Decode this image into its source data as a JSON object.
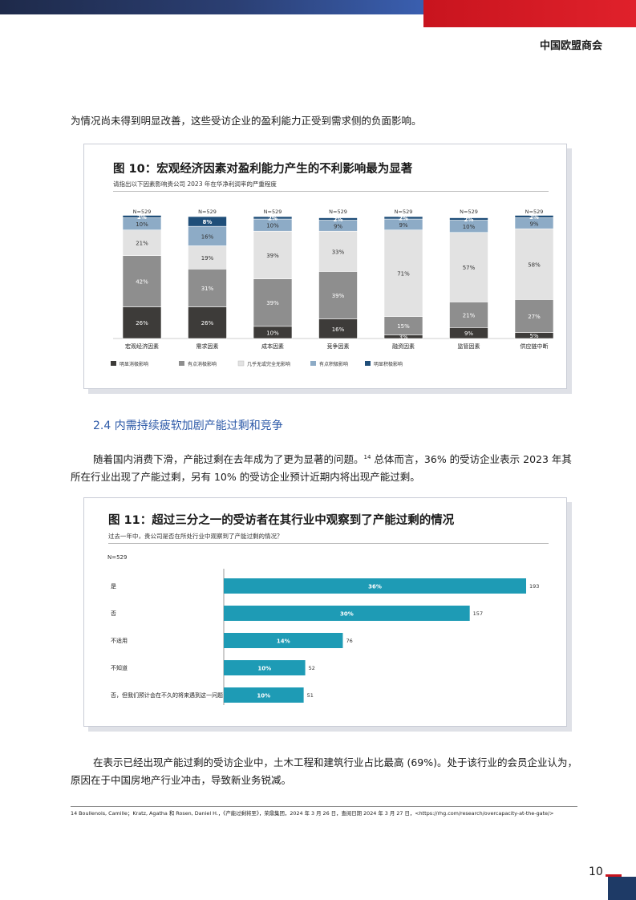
{
  "header": {
    "org": "中国欧盟商会"
  },
  "paragraphs": {
    "p1": "为情况尚未得到明显改善，这些受访企业的盈利能力正受到需求侧的负面影响。",
    "section_title": "2.4 内需持续疲软加剧产能过剩和竞争",
    "p2_a": "随着国内消费下滑，产能过剩在去年成为了更为显著的问题。",
    "p2_sup": "14",
    "p2_b": " 总体而言，36% 的受访企业表示 2023 年其所在行业出现了产能过剩，另有 10% 的受访企业预计近期内将出现产能过剩。",
    "p3": "在表示已经出现产能过剩的受访企业中，土木工程和建筑行业占比最高 (69%)。处于该行业的会员企业认为，原因在于中国房地产行业冲击，导致新业务锐减。"
  },
  "figure10": {
    "title": "图 10：宏观经济因素对盈利能力产生的不利影响最为显著",
    "subtitle": "请指出以下因素影响贵公司 2023 年在华净利润率的严重程度"
  },
  "figure11": {
    "title": "图 11：超过三分之一的受访者在其行业中观察到了产能过剩的情况",
    "subtitle": "过去一年中，贵公司是否在所处行业中观察到了产能过剩的情况？"
  },
  "footnote": "14  Boullenois, Camille；Kratz, Agatha 和 Rosen, Daniel H.，《产能过剩将至》，荣鼎集团，2024 年 3 月 26 日，查阅日期 2024 年 3 月 27 日，<https://rhg.com/research/overcapacity-at-the-gate/>",
  "page_number": "10",
  "chart_data": [
    {
      "type": "bar",
      "stacked": true,
      "n_labels": [
        "N=529",
        "N=529",
        "N=529",
        "N=529",
        "N=529",
        "N=529",
        "N=529"
      ],
      "categories": [
        "宏观经济因素",
        "需求因素",
        "成本因素",
        "竞争因素",
        "融资因素",
        "监管因素",
        "供应链中断"
      ],
      "series": [
        {
          "name": "明显消极影响",
          "color": "#3d3b39",
          "values": [
            26,
            26,
            10,
            16,
            3,
            9,
            5
          ]
        },
        {
          "name": "有点消极影响",
          "color": "#8e8e8e",
          "values": [
            42,
            31,
            39,
            39,
            15,
            21,
            27
          ]
        },
        {
          "name": "几乎无或完全无影响",
          "color": "#e2e2e2",
          "values": [
            21,
            19,
            39,
            33,
            71,
            57,
            58
          ]
        },
        {
          "name": "有点积极影响",
          "color": "#8dabc6",
          "values": [
            10,
            16,
            10,
            9,
            9,
            10,
            9
          ]
        },
        {
          "name": "明显积极影响",
          "color": "#1f4e79",
          "values": [
            2,
            8,
            2,
            2,
            2,
            2,
            2
          ]
        }
      ],
      "ylim": [
        0,
        100
      ]
    },
    {
      "type": "bar",
      "orientation": "horizontal",
      "n_label": "N=529",
      "color": "#1e9bb5",
      "categories": [
        "是",
        "否",
        "不适用",
        "不知道",
        "否，但我们预计会在不久的将来遇到这一问题"
      ],
      "percent_labels": [
        "36%",
        "30%",
        "14%",
        "10%",
        "10%"
      ],
      "values": [
        193,
        157,
        76,
        52,
        51
      ]
    }
  ]
}
